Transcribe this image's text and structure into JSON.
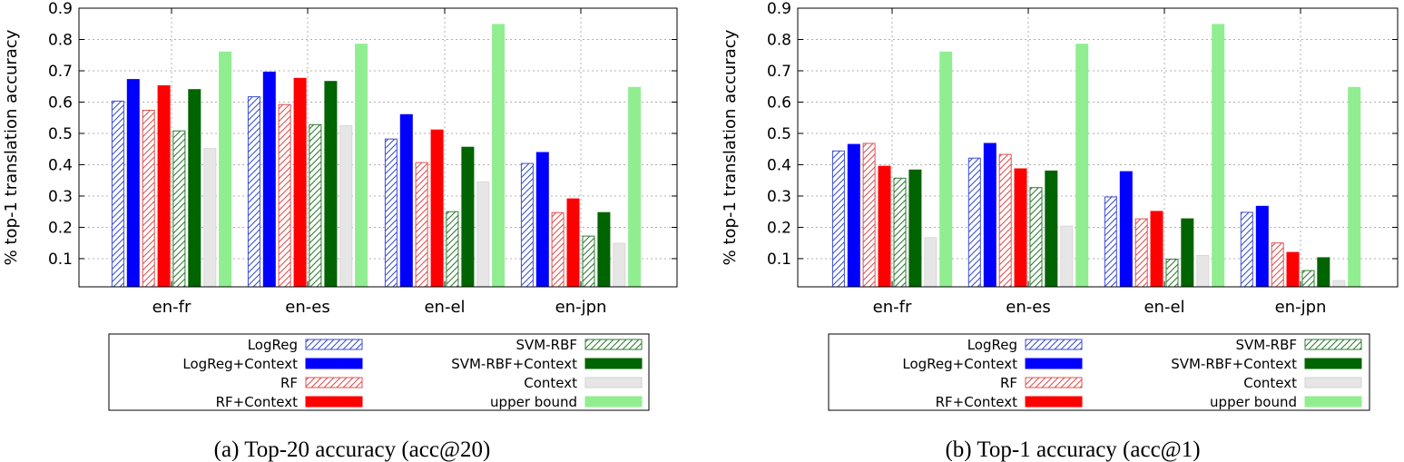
{
  "series_styles": [
    {
      "name": "LogReg",
      "color": "#3b4fd6",
      "pattern": "hatch"
    },
    {
      "name": "LogReg+Context",
      "color": "#0000ff",
      "pattern": "solid"
    },
    {
      "name": "RF",
      "color": "#e05050",
      "pattern": "hatch"
    },
    {
      "name": "RF+Context",
      "color": "#ff0000",
      "pattern": "solid"
    },
    {
      "name": "SVM-RBF",
      "color": "#2e7d32",
      "pattern": "hatch"
    },
    {
      "name": "SVM-RBF+Context",
      "color": "#006400",
      "pattern": "solid"
    },
    {
      "name": "Context",
      "color": "#e6e6e6",
      "pattern": "solid"
    },
    {
      "name": "upper bound",
      "color": "#90ee90",
      "pattern": "solid"
    }
  ],
  "chart_data": [
    {
      "type": "bar",
      "ylabel": "% top-1 translation accuracy",
      "caption": "(a) Top-20 accuracy (acc@20)",
      "yticks": [
        "0.1",
        "0.2",
        "0.3",
        "0.4",
        "0.5",
        "0.6",
        "0.7",
        "0.8",
        "0.9"
      ],
      "ylim": [
        0.01,
        0.9
      ],
      "grid": true,
      "legend_position": "bottom",
      "categories": [
        "en-fr",
        "en-es",
        "en-el",
        "en-jpn"
      ],
      "series": [
        {
          "name": "LogReg",
          "values": [
            0.603,
            0.617,
            0.482,
            0.404
          ]
        },
        {
          "name": "LogReg+Context",
          "values": [
            0.672,
            0.696,
            0.56,
            0.439
          ]
        },
        {
          "name": "RF",
          "values": [
            0.574,
            0.592,
            0.407,
            0.247
          ]
        },
        {
          "name": "RF+Context",
          "values": [
            0.652,
            0.676,
            0.511,
            0.291
          ]
        },
        {
          "name": "SVM-RBF",
          "values": [
            0.508,
            0.528,
            0.25,
            0.172
          ]
        },
        {
          "name": "SVM-RBF+Context",
          "values": [
            0.64,
            0.666,
            0.456,
            0.247
          ]
        },
        {
          "name": "Context",
          "values": [
            0.452,
            0.525,
            0.345,
            0.149
          ]
        },
        {
          "name": "upper bound",
          "values": [
            0.76,
            0.785,
            0.848,
            0.647
          ]
        }
      ]
    },
    {
      "type": "bar",
      "ylabel": "% top-1 translation accuracy",
      "caption": "(b) Top-1 accuracy (acc@1)",
      "yticks": [
        "0.1",
        "0.2",
        "0.3",
        "0.4",
        "0.5",
        "0.6",
        "0.7",
        "0.8",
        "0.9"
      ],
      "ylim": [
        0.01,
        0.9
      ],
      "grid": true,
      "legend_position": "bottom",
      "categories": [
        "en-fr",
        "en-es",
        "en-el",
        "en-jpn"
      ],
      "series": [
        {
          "name": "LogReg",
          "values": [
            0.444,
            0.421,
            0.297,
            0.248
          ]
        },
        {
          "name": "LogReg+Context",
          "values": [
            0.465,
            0.468,
            0.378,
            0.267
          ]
        },
        {
          "name": "RF",
          "values": [
            0.468,
            0.433,
            0.227,
            0.15
          ]
        },
        {
          "name": "RF+Context",
          "values": [
            0.395,
            0.387,
            0.251,
            0.12
          ]
        },
        {
          "name": "SVM-RBF",
          "values": [
            0.357,
            0.327,
            0.098,
            0.062
          ]
        },
        {
          "name": "SVM-RBF+Context",
          "values": [
            0.383,
            0.38,
            0.227,
            0.103
          ]
        },
        {
          "name": "Context",
          "values": [
            0.167,
            0.204,
            0.11,
            0.03
          ]
        },
        {
          "name": "upper bound",
          "values": [
            0.76,
            0.785,
            0.848,
            0.647
          ]
        }
      ]
    }
  ]
}
